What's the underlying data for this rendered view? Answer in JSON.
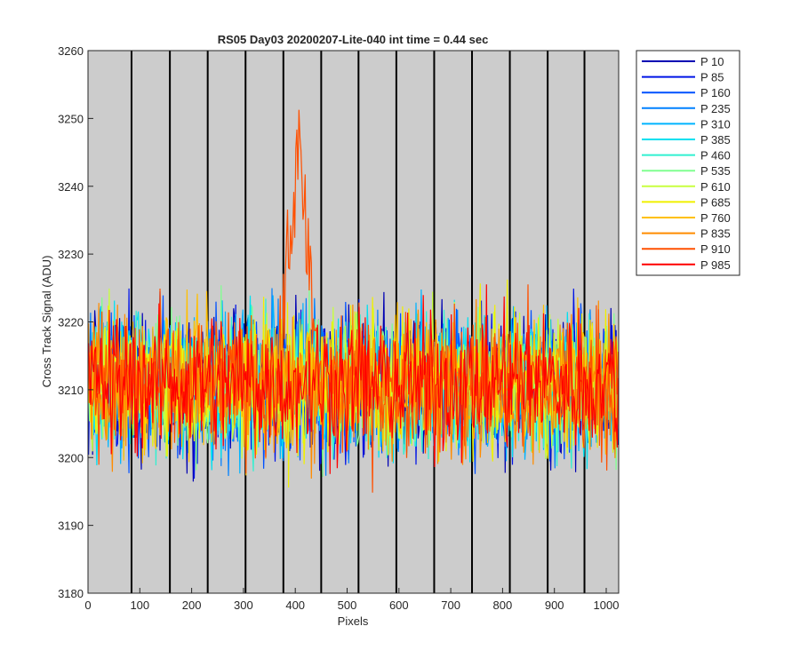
{
  "chart_data": {
    "type": "line",
    "title": "RS05 Day03 20200207-Lite-040 int time = 0.44 sec",
    "xlabel": "Pixels",
    "ylabel": "Cross Track Signal (ADU)",
    "xlim": [
      0,
      1024
    ],
    "ylim": [
      3180,
      3260
    ],
    "xticks": [
      0,
      100,
      200,
      300,
      400,
      500,
      600,
      700,
      800,
      900,
      1000
    ],
    "yticks": [
      3180,
      3190,
      3200,
      3210,
      3220,
      3230,
      3240,
      3250,
      3260
    ],
    "plot_background": "#cccccc",
    "column_boundaries": [
      84,
      158,
      231,
      304,
      377,
      450,
      522,
      595,
      668,
      741,
      814,
      887,
      958
    ],
    "legend_position": "outside-right",
    "noise_model": {
      "mean": 3211,
      "spread_adu": 6,
      "note_peak": "P 910 shows a bump to about 3258 between pixels 375 and 440"
    },
    "series": [
      {
        "name": "P 10",
        "color": "#0000b3"
      },
      {
        "name": "P 85",
        "color": "#0014e6"
      },
      {
        "name": "P 160",
        "color": "#0050ff"
      },
      {
        "name": "P 235",
        "color": "#0080ff"
      },
      {
        "name": "P 310",
        "color": "#00b4ff"
      },
      {
        "name": "P 385",
        "color": "#00e0f0"
      },
      {
        "name": "P 460",
        "color": "#30f0d0"
      },
      {
        "name": "P 535",
        "color": "#80ff90"
      },
      {
        "name": "P 610",
        "color": "#c8ff40"
      },
      {
        "name": "P 685",
        "color": "#f0f000"
      },
      {
        "name": "P 760",
        "color": "#ffc000"
      },
      {
        "name": "P 835",
        "color": "#ff8c00"
      },
      {
        "name": "P 910",
        "color": "#ff5000"
      },
      {
        "name": "P 985",
        "color": "#ff0000"
      }
    ]
  }
}
